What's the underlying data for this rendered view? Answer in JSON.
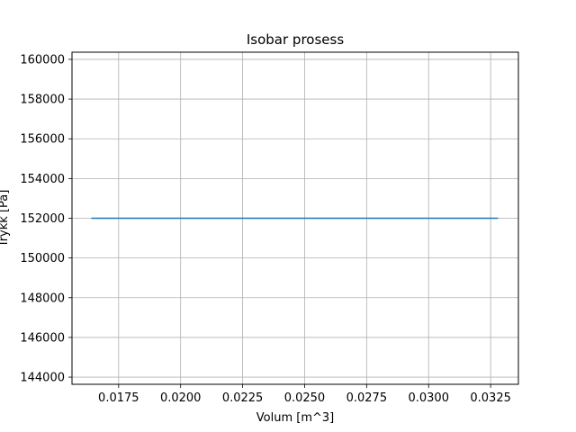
{
  "chart_data": {
    "type": "line",
    "title": "Isobar prosess",
    "xlabel": "Volum [m^3]",
    "ylabel": "Trykk [Pa]",
    "xlim": [
      0.01562,
      0.03362
    ],
    "ylim": [
      143640,
      160360
    ],
    "xticks": [
      0.0175,
      0.02,
      0.0225,
      0.025,
      0.0275,
      0.03,
      0.0325
    ],
    "xtick_labels": [
      "0.0175",
      "0.0200",
      "0.0225",
      "0.0250",
      "0.0275",
      "0.0300",
      "0.0325"
    ],
    "yticks": [
      144000,
      146000,
      148000,
      150000,
      152000,
      154000,
      156000,
      158000,
      160000
    ],
    "ytick_labels": [
      "144000",
      "146000",
      "148000",
      "150000",
      "152000",
      "154000",
      "156000",
      "158000",
      "160000"
    ],
    "grid": true,
    "series": [
      {
        "x": [
          0.0164,
          0.0328
        ],
        "y": [
          152000,
          152000
        ],
        "color": "#1f77b4"
      }
    ]
  }
}
